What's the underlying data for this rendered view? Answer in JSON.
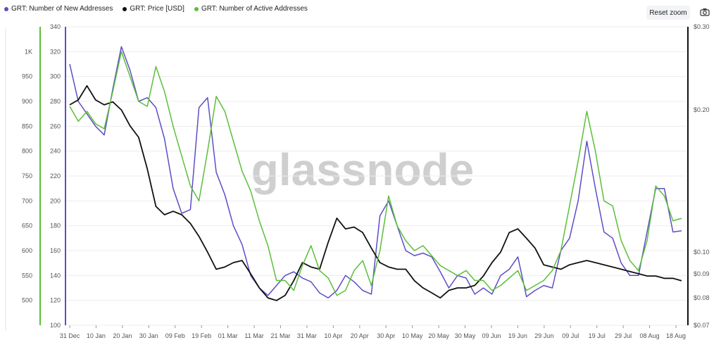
{
  "legend": [
    {
      "label": "GRT: Number of New Addresses",
      "color": "#5b4ec7"
    },
    {
      "label": "GRT: Price [USD]",
      "color": "#111111"
    },
    {
      "label": "GRT: Number of Active Addresses",
      "color": "#5bbf3a"
    }
  ],
  "toolbar": {
    "reset_zoom": "Reset zoom",
    "camera_icon": "camera-icon"
  },
  "watermark": "glassnode",
  "chart_data": {
    "type": "line",
    "x_labels": [
      "31 Dec",
      "10 Jan",
      "20 Jan",
      "30 Jan",
      "09 Feb",
      "19 Feb",
      "01 Mar",
      "11 Mar",
      "21 Mar",
      "31 Mar",
      "10 Apr",
      "20 Apr",
      "30 Apr",
      "10 May",
      "20 May",
      "30 May",
      "09 Jun",
      "19 Jun",
      "29 Jun",
      "09 Jul",
      "19 Jul",
      "29 Jul",
      "08 Aug",
      "18 Aug"
    ],
    "axes": {
      "left_outer": {
        "ticks": [
          "1K",
          "950",
          "900",
          "850",
          "800",
          "750",
          "700",
          "650",
          "600",
          "550",
          "500"
        ],
        "values": [
          1000,
          950,
          900,
          850,
          800,
          750,
          700,
          650,
          600,
          550,
          500
        ],
        "range": [
          450,
          1050
        ],
        "color": "#5bbf3a"
      },
      "left_inner": {
        "ticks": [
          "340",
          "320",
          "300",
          "280",
          "260",
          "240",
          "220",
          "200",
          "180",
          "160",
          "140",
          "120",
          "100"
        ],
        "values": [
          340,
          320,
          300,
          280,
          260,
          240,
          220,
          200,
          180,
          160,
          140,
          120,
          100
        ],
        "range": [
          100,
          340
        ],
        "color": "#5b4ec7"
      },
      "right": {
        "ticks": [
          "$0.30",
          "$0.20",
          "$0.10",
          "$0.09",
          "$0.08",
          "$0.07"
        ],
        "values": [
          0.3,
          0.2,
          0.1,
          0.09,
          0.08,
          0.07
        ],
        "range": [
          0.07,
          0.3
        ],
        "scale": "log",
        "color": "#111111"
      }
    },
    "series": [
      {
        "name": "GRT: Number of New Addresses",
        "axis": "left_inner",
        "color": "#5b4ec7",
        "values": [
          310,
          280,
          270,
          260,
          253,
          290,
          324,
          305,
          280,
          283,
          275,
          250,
          210,
          190,
          193,
          275,
          283,
          223,
          205,
          180,
          165,
          140,
          130,
          124,
          132,
          140,
          143,
          138,
          135,
          126,
          122,
          128,
          140,
          135,
          128,
          125,
          188,
          200,
          180,
          160,
          156,
          158,
          155,
          143,
          130,
          140,
          138,
          125,
          130,
          125,
          140,
          145,
          155,
          123,
          128,
          132,
          130,
          160,
          170,
          200,
          248,
          210,
          175,
          170,
          150,
          140,
          140,
          175,
          210,
          210,
          175,
          176
        ]
      },
      {
        "name": "GRT: Price [USD]",
        "axis": "right",
        "color": "#111111",
        "values": [
          0.205,
          0.21,
          0.225,
          0.21,
          0.205,
          0.208,
          0.2,
          0.185,
          0.175,
          0.15,
          0.125,
          0.12,
          0.122,
          0.12,
          0.115,
          0.108,
          0.1,
          0.092,
          0.093,
          0.095,
          0.096,
          0.09,
          0.084,
          0.08,
          0.079,
          0.081,
          0.087,
          0.095,
          0.093,
          0.092,
          0.105,
          0.118,
          0.112,
          0.113,
          0.11,
          0.102,
          0.095,
          0.093,
          0.092,
          0.092,
          0.087,
          0.084,
          0.082,
          0.08,
          0.083,
          0.084,
          0.084,
          0.085,
          0.089,
          0.095,
          0.1,
          0.11,
          0.112,
          0.107,
          0.102,
          0.094,
          0.093,
          0.092,
          0.094,
          0.095,
          0.096,
          0.095,
          0.094,
          0.093,
          0.092,
          0.091,
          0.09,
          0.089,
          0.089,
          0.088,
          0.088,
          0.087
        ]
      },
      {
        "name": "GRT: Number of Active Addresses",
        "axis": "left_outer",
        "color": "#5bbf3a",
        "values": [
          890,
          860,
          880,
          855,
          845,
          920,
          1000,
          950,
          900,
          890,
          970,
          920,
          850,
          790,
          730,
          700,
          800,
          910,
          880,
          820,
          760,
          720,
          660,
          610,
          540,
          540,
          520,
          570,
          610,
          560,
          545,
          510,
          520,
          560,
          580,
          530,
          600,
          710,
          650,
          620,
          600,
          610,
          590,
          570,
          560,
          550,
          560,
          540,
          540,
          520,
          530,
          545,
          560,
          520,
          530,
          540,
          560,
          600,
          690,
          780,
          880,
          800,
          700,
          690,
          620,
          580,
          560,
          620,
          730,
          710,
          660,
          665
        ]
      }
    ],
    "xlabel": "",
    "ylabel": "",
    "grid": true,
    "legend_position": "top-left"
  }
}
